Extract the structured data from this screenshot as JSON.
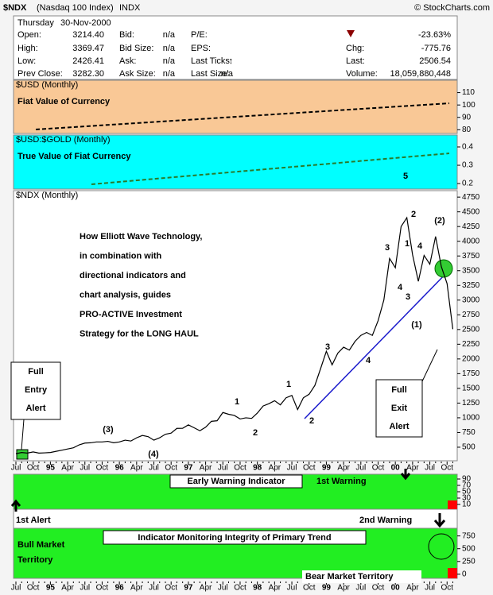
{
  "header": {
    "symbol": "$NDX",
    "name": "(Nasdaq 100 Index)",
    "exchange": "INDX",
    "source": "© StockCharts.com"
  },
  "quote": {
    "day": "Thursday",
    "date": "30-Nov-2000",
    "change_pct": "-23.63%",
    "left": [
      [
        "Open:",
        "3214.40"
      ],
      [
        "High:",
        "3369.47"
      ],
      [
        "Low:",
        "2426.41"
      ],
      [
        "Prev Close:",
        "3282.30"
      ]
    ],
    "mid": [
      [
        "Bid:",
        "n/a"
      ],
      [
        "Bid Size:",
        "n/a"
      ],
      [
        "Ask:",
        "n/a"
      ],
      [
        "Ask Size:",
        "n/a"
      ]
    ],
    "right": [
      [
        "P/E:"
      ],
      [
        "EPS:"
      ],
      [
        "Last Ticks:",
        "↑"
      ],
      [
        "Last Size:",
        "n/a"
      ]
    ],
    "far": [
      [
        "Chg:",
        "-775.76"
      ],
      [
        "Last:",
        "2506.54"
      ],
      [
        "Volume:",
        "18,059,880,448"
      ]
    ]
  },
  "chart_data": [
    {
      "type": "line",
      "categories": [
        "Jul",
        null,
        null,
        "Oct",
        null,
        null,
        "95",
        null,
        null,
        "Apr",
        null,
        null,
        "Jul",
        null,
        null,
        "Oct",
        null,
        null,
        "96",
        null,
        null,
        "Apr",
        null,
        null,
        "Jul",
        null,
        null,
        "Oct",
        null,
        null,
        "97",
        null,
        null,
        "Apr",
        null,
        null,
        "Jul",
        null,
        null,
        "Oct",
        null,
        null,
        "98",
        null,
        null,
        "Apr",
        null,
        null,
        "Jul",
        null,
        null,
        "Oct",
        null,
        null,
        "99",
        null,
        null,
        "Apr",
        null,
        null,
        "Jul",
        null,
        null,
        "Oct",
        null,
        null,
        "00",
        null,
        null,
        "Apr",
        null,
        null,
        "Jul",
        null,
        null,
        "Oct",
        null
      ],
      "series": [
        {
          "name": "$NDX (Monthly)",
          "color": "#000000",
          "values": [
            390,
            410,
            400,
            420,
            400,
            404,
            410,
            430,
            450,
            470,
            490,
            540,
            570,
            575,
            590,
            590,
            600,
            576,
            590,
            620,
            605,
            660,
            700,
            680,
            620,
            660,
            720,
            740,
            820,
            821,
            880,
            830,
            780,
            840,
            940,
            950,
            1090,
            1060,
            1040,
            980,
            1000,
            990,
            1080,
            1200,
            1240,
            1290,
            1220,
            1340,
            1380,
            1140,
            1340,
            1400,
            1550,
            1836,
            2130,
            1900,
            2100,
            2200,
            2150,
            2300,
            2400,
            2450,
            2400,
            2650,
            3000,
            3708,
            3550,
            4250,
            4400,
            3770,
            3320,
            3760,
            3610,
            4080,
            3570,
            3280,
            2506
          ]
        }
      ],
      "ylim": [
        270,
        4860
      ],
      "yticks": [
        500,
        750,
        1000,
        1250,
        1500,
        1750,
        2000,
        2250,
        2500,
        2750,
        3000,
        3250,
        3500,
        3750,
        4000,
        4250,
        4500,
        4750
      ],
      "annotations": [
        "5",
        "(2)",
        "1",
        "2",
        "4",
        "3",
        "4",
        "3",
        "(1)",
        "3",
        "4",
        "1",
        "2",
        "1",
        "2",
        "(3)",
        "(4)"
      ],
      "text_block": [
        "How Elliott Wave Technology,",
        "in combination with",
        "directional indicators  and",
        "chart analysis, guides",
        "PRO-ACTIVE Investment",
        "Strategy for the LONG HAUL"
      ],
      "entry_alert": [
        "Full",
        "Entry",
        "Alert"
      ],
      "exit_alert": [
        "Full",
        "Exit",
        "Alert"
      ]
    },
    {
      "type": "panel",
      "label": "$USD (Monthly)",
      "caption": "Fiat Value of Currency",
      "ylim": [
        77,
        120
      ],
      "yticks": [
        80,
        90,
        100,
        110
      ]
    },
    {
      "type": "panel",
      "label": "$USD:$GOLD (Monthly)",
      "caption": "True Value of Fiat Currency",
      "ylim": [
        0.17,
        0.465
      ],
      "yticks": [
        0.2,
        0.3,
        0.4
      ]
    },
    {
      "type": "panel",
      "caption": "Early Warning Indicator",
      "ylim": [
        -5,
        105
      ],
      "yticks": [
        10,
        30,
        50,
        70,
        90
      ],
      "notes": [
        "1st Warning",
        "1st Alert",
        "2nd Warning"
      ]
    },
    {
      "type": "panel",
      "caption": "Indicator Monitoring Integrity of Primary Trend",
      "ylim": [
        -80,
        900
      ],
      "yticks": [
        0,
        250,
        500,
        750
      ],
      "notes": [
        "Bull Market",
        "Territory",
        "Bear Market Territory"
      ]
    }
  ]
}
